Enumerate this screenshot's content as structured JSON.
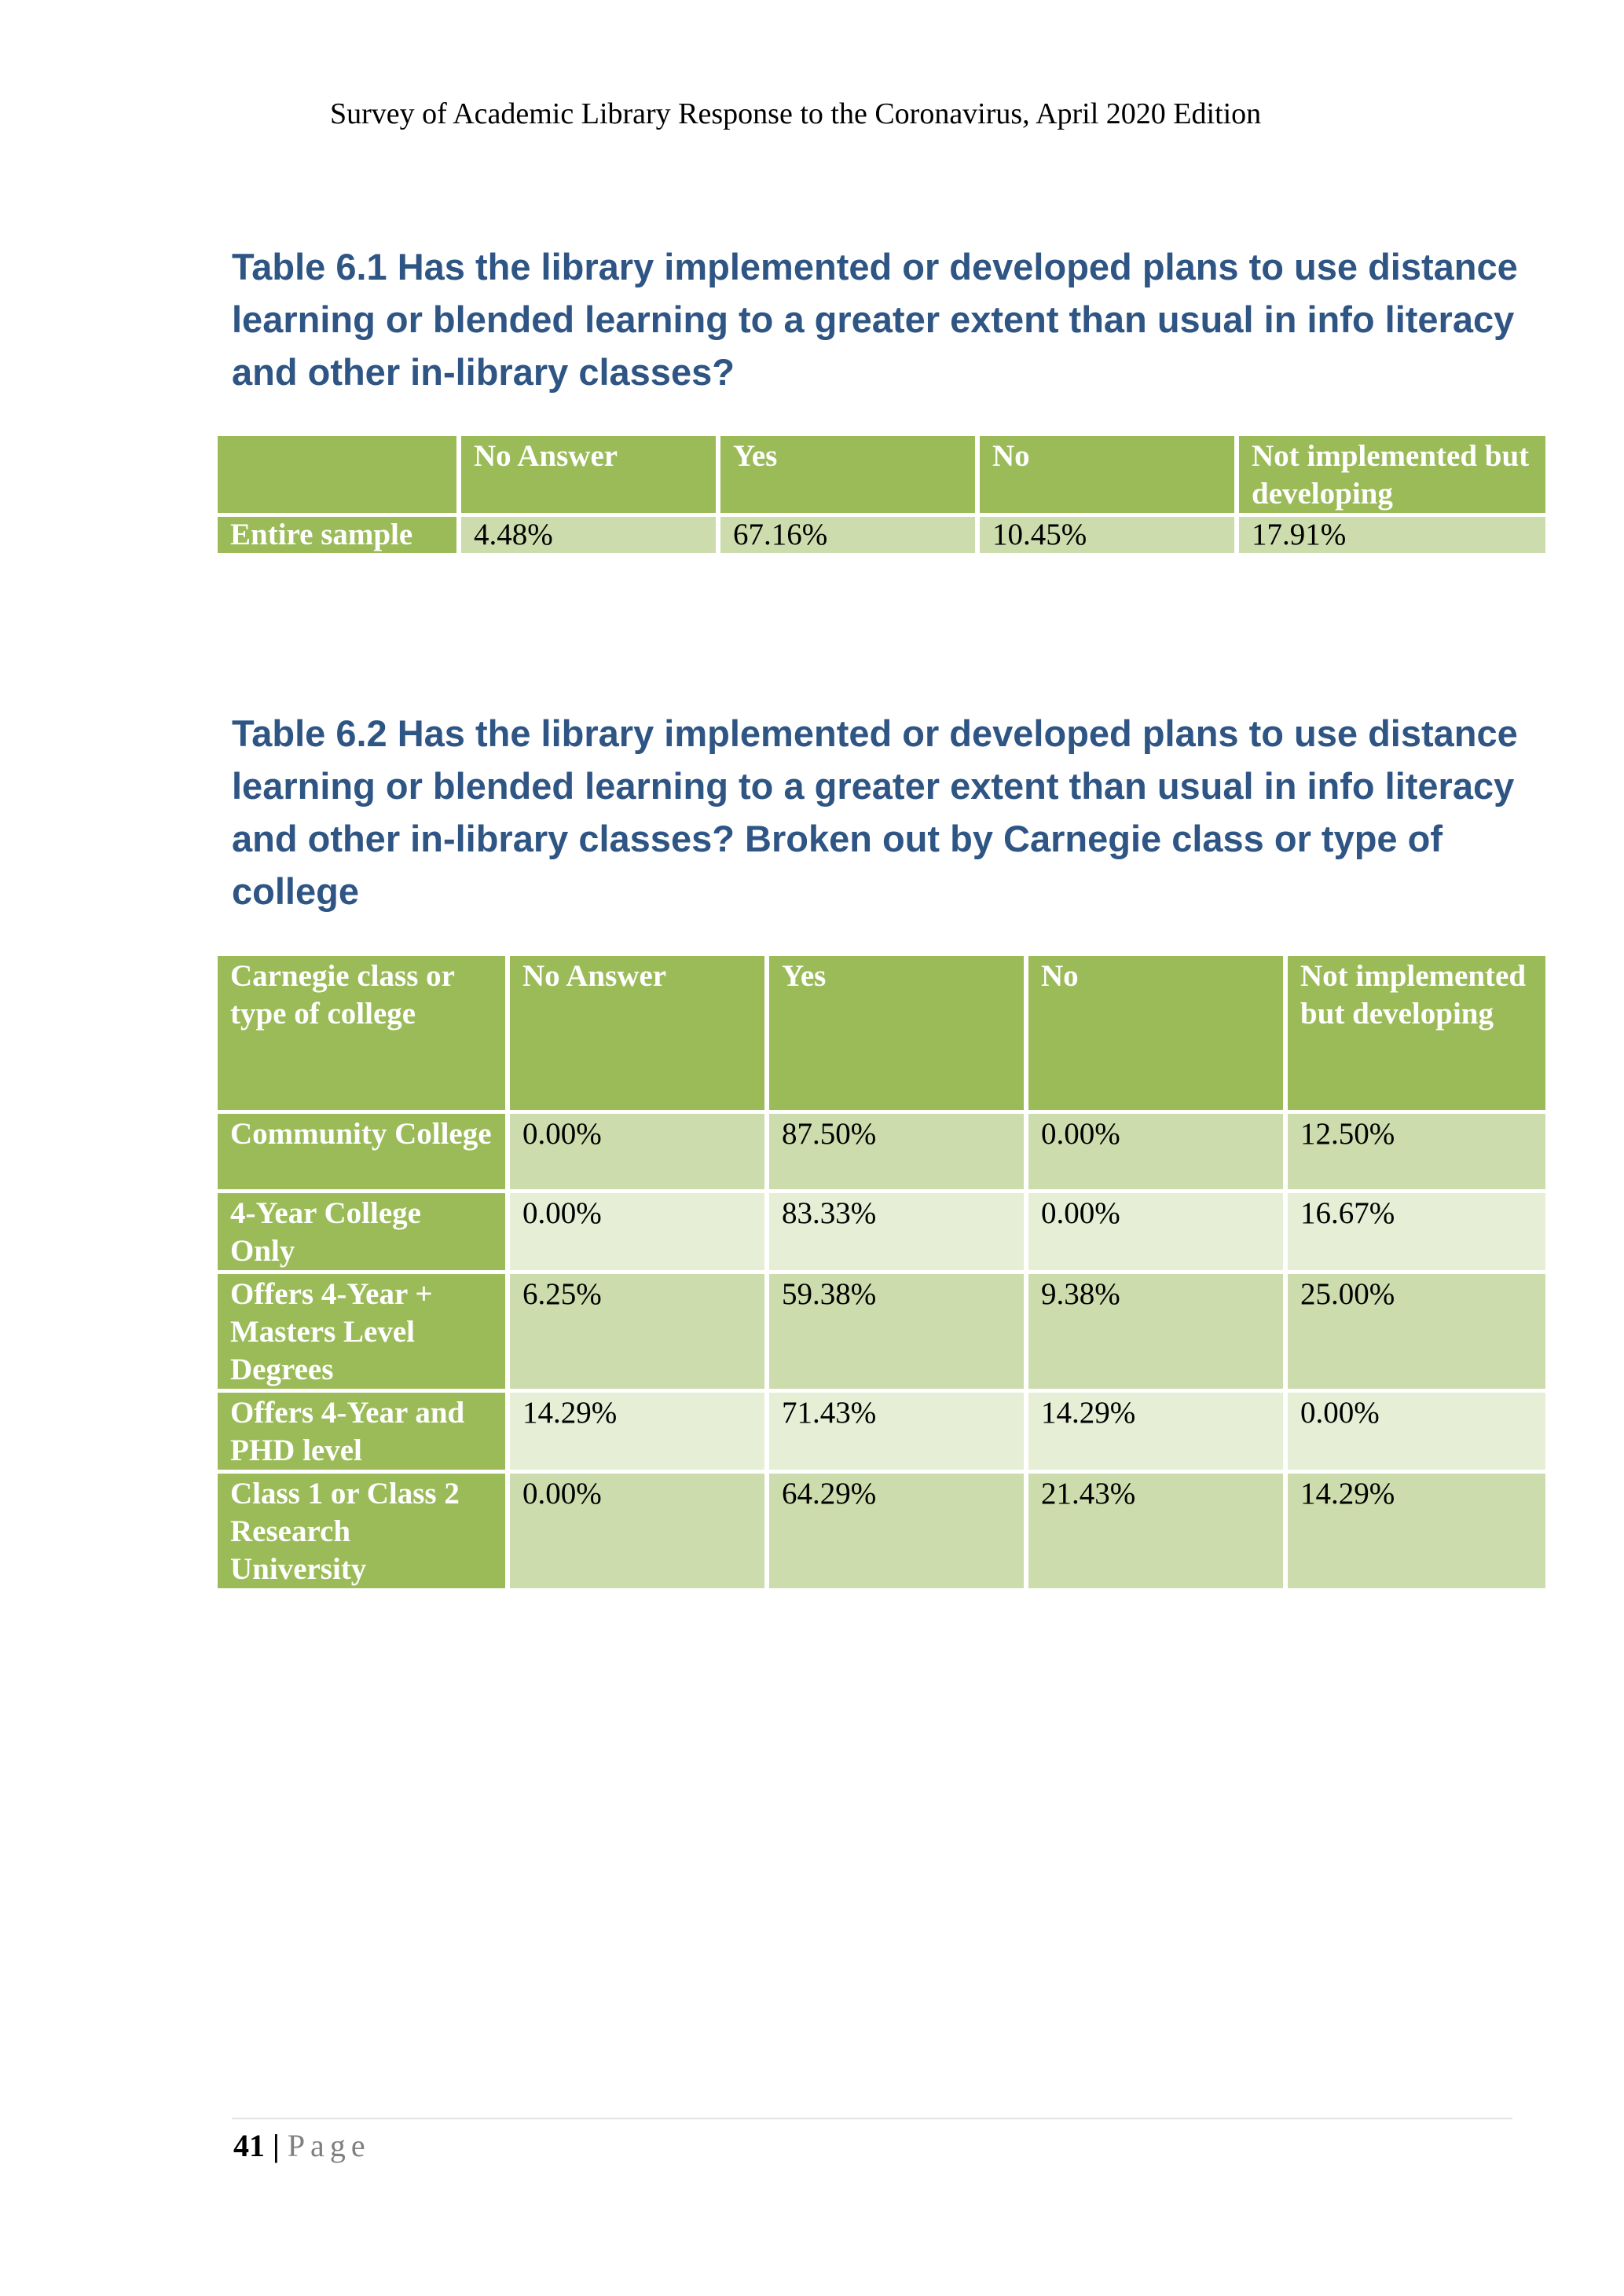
{
  "header": {
    "running_title": "Survey of Academic Library Response to the  Coronavirus, April 2020 Edition"
  },
  "table_6_1": {
    "title": "Table 6.1 Has the library implemented or developed plans to use distance learning or blended learning to a greater extent than usual in info literacy and other in-library classes?",
    "columns": [
      "",
      "No Answer",
      "Yes",
      "No",
      "Not implemented but developing"
    ],
    "rows": [
      {
        "label": "Entire sample",
        "values": [
          "4.48%",
          "67.16%",
          "10.45%",
          "17.91%"
        ]
      }
    ]
  },
  "table_6_2": {
    "title": "Table 6.2 Has the library implemented or developed plans to use distance learning or blended learning to a greater extent than usual in info literacy and other in-library classes? Broken out by Carnegie class or type of college",
    "columns": [
      "Carnegie class or type of college",
      "No Answer",
      "Yes",
      "No",
      "Not implemented but developing"
    ],
    "rows": [
      {
        "label": "Community College",
        "values": [
          "0.00%",
          "87.50%",
          "0.00%",
          "12.50%"
        ]
      },
      {
        "label": "4-Year College Only",
        "values": [
          "0.00%",
          "83.33%",
          "0.00%",
          "16.67%"
        ]
      },
      {
        "label": "Offers 4-Year + Masters Level Degrees",
        "values": [
          "6.25%",
          "59.38%",
          "9.38%",
          "25.00%"
        ]
      },
      {
        "label": "Offers 4-Year and PHD level",
        "values": [
          "14.29%",
          "71.43%",
          "14.29%",
          "0.00%"
        ]
      },
      {
        "label": "Class 1 or Class 2 Research University",
        "values": [
          "0.00%",
          "64.29%",
          "21.43%",
          "14.29%"
        ]
      }
    ]
  },
  "footer": {
    "page_number": "41",
    "separator": "|",
    "page_word": "Page"
  },
  "colors": {
    "title": "#2e5584",
    "header_fill": "#9bbb59",
    "cell_dark": "#cddcac",
    "cell_light": "#e6eed5"
  }
}
